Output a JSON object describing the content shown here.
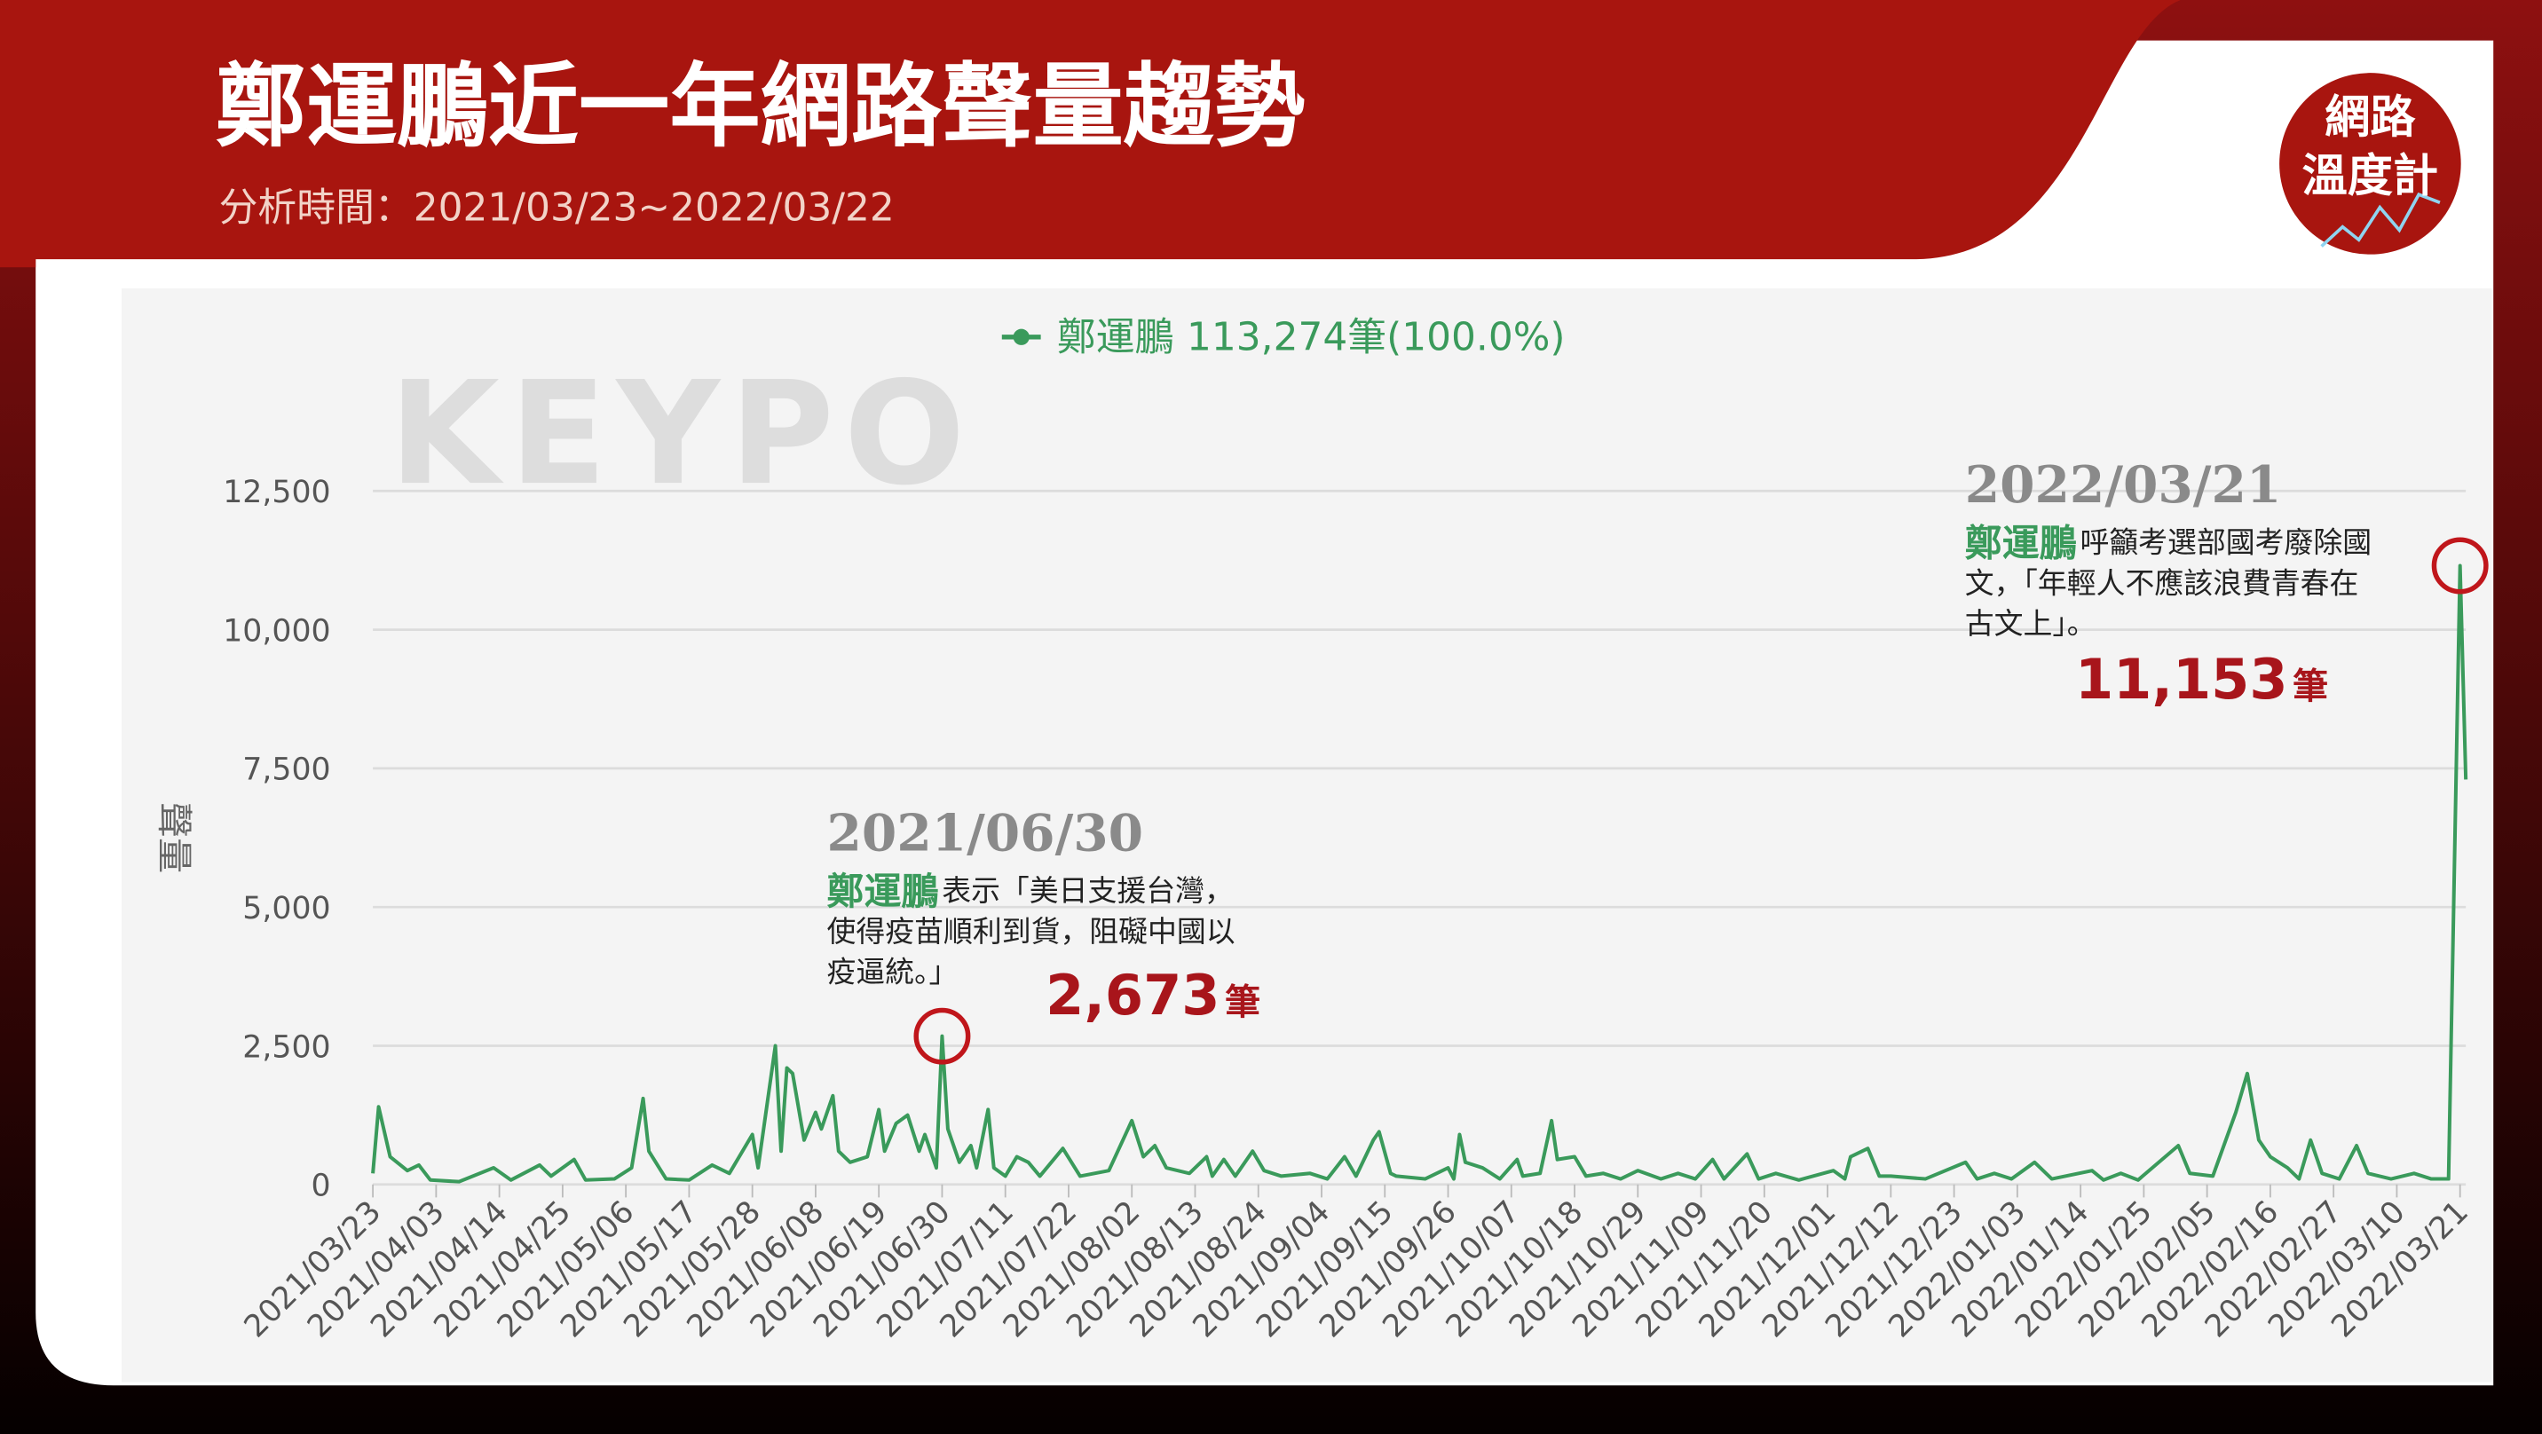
{
  "header": {
    "title": "鄭運鵬近一年網路聲量趨勢",
    "subtitle": "分析時間：2021/03/23~2022/03/22",
    "logo_lines": [
      "網路",
      "溫度計"
    ],
    "watermark": "KEYPO"
  },
  "chart_data": {
    "type": "line",
    "ylabel": "聲量",
    "x": [
      "2021/03/23",
      "2021/03/24",
      "2021/03/26",
      "2021/03/29",
      "2021/03/31",
      "2021/04/02",
      "2021/04/07",
      "2021/04/13",
      "2021/04/16",
      "2021/04/21",
      "2021/04/23",
      "2021/04/27",
      "2021/04/29",
      "2021/05/04",
      "2021/05/07",
      "2021/05/09",
      "2021/05/10",
      "2021/05/13",
      "2021/05/17",
      "2021/05/21",
      "2021/05/24",
      "2021/05/28",
      "2021/05/29",
      "2021/06/01",
      "2021/06/02",
      "2021/06/03",
      "2021/06/04",
      "2021/06/06",
      "2021/06/08",
      "2021/06/09",
      "2021/06/11",
      "2021/06/12",
      "2021/06/14",
      "2021/06/17",
      "2021/06/19",
      "2021/06/20",
      "2021/06/22",
      "2021/06/24",
      "2021/06/26",
      "2021/06/27",
      "2021/06/29",
      "2021/06/30",
      "2021/07/01",
      "2021/07/03",
      "2021/07/05",
      "2021/07/06",
      "2021/07/08",
      "2021/07/09",
      "2021/07/11",
      "2021/07/13",
      "2021/07/15",
      "2021/07/17",
      "2021/07/21",
      "2021/07/24",
      "2021/07/29",
      "2021/08/02",
      "2021/08/04",
      "2021/08/06",
      "2021/08/08",
      "2021/08/12",
      "2021/08/15",
      "2021/08/16",
      "2021/08/18",
      "2021/08/20",
      "2021/08/23",
      "2021/08/25",
      "2021/08/28",
      "2021/09/02",
      "2021/09/05",
      "2021/09/08",
      "2021/09/10",
      "2021/09/13",
      "2021/09/14",
      "2021/09/16",
      "2021/09/17",
      "2021/09/22",
      "2021/09/26",
      "2021/09/27",
      "2021/09/28",
      "2021/09/29",
      "2021/10/02",
      "2021/10/05",
      "2021/10/08",
      "2021/10/09",
      "2021/10/12",
      "2021/10/14",
      "2021/10/15",
      "2021/10/18",
      "2021/10/20",
      "2021/10/23",
      "2021/10/26",
      "2021/10/29",
      "2021/11/02",
      "2021/11/05",
      "2021/11/08",
      "2021/11/11",
      "2021/11/13",
      "2021/11/17",
      "2021/11/19",
      "2021/11/22",
      "2021/11/26",
      "2021/12/02",
      "2021/12/04",
      "2021/12/05",
      "2021/12/08",
      "2021/12/10",
      "2021/12/12",
      "2021/12/18",
      "2021/12/25",
      "2021/12/27",
      "2021/12/30",
      "2022/01/02",
      "2022/01/06",
      "2022/01/09",
      "2022/01/16",
      "2022/01/18",
      "2022/01/21",
      "2022/01/24",
      "2022/01/31",
      "2022/02/02",
      "2022/02/06",
      "2022/02/10",
      "2022/02/12",
      "2022/02/14",
      "2022/02/16",
      "2022/02/19",
      "2022/02/21",
      "2022/02/23",
      "2022/02/25",
      "2022/02/28",
      "2022/03/03",
      "2022/03/05",
      "2022/03/09",
      "2022/03/13",
      "2022/03/16",
      "2022/03/19",
      "2022/03/21",
      "2022/03/22"
    ],
    "series": [
      {
        "name": "鄭運鵬",
        "color": "#3a9a5b",
        "legend_stats": "113,274筆(100.0%)",
        "values": [
          200,
          1400,
          500,
          250,
          350,
          80,
          50,
          300,
          80,
          350,
          150,
          450,
          80,
          100,
          300,
          1550,
          600,
          100,
          80,
          350,
          200,
          900,
          300,
          2500,
          600,
          2100,
          2000,
          800,
          1300,
          1000,
          1600,
          600,
          400,
          500,
          1350,
          600,
          1100,
          1250,
          600,
          900,
          300,
          2673,
          1000,
          400,
          700,
          300,
          1350,
          300,
          150,
          500,
          400,
          150,
          650,
          150,
          250,
          1150,
          500,
          700,
          300,
          200,
          500,
          150,
          450,
          150,
          600,
          250,
          150,
          200,
          100,
          500,
          150,
          800,
          950,
          200,
          150,
          100,
          300,
          100,
          900,
          400,
          300,
          100,
          450,
          150,
          200,
          1150,
          450,
          500,
          150,
          200,
          100,
          250,
          100,
          200,
          100,
          450,
          100,
          550,
          100,
          200,
          80,
          250,
          100,
          500,
          650,
          150,
          150,
          100,
          400,
          100,
          200,
          100,
          400,
          100,
          250,
          80,
          200,
          80,
          700,
          200,
          150,
          1300,
          2000,
          800,
          500,
          300,
          100,
          800,
          200,
          100,
          700,
          200,
          100,
          200,
          100,
          100,
          11153,
          7300
        ]
      }
    ],
    "xlim": [
      "2021/03/23",
      "2022/03/22"
    ],
    "xticks": [
      "2021/03/23",
      "2021/04/03",
      "2021/04/14",
      "2021/04/25",
      "2021/05/06",
      "2021/05/17",
      "2021/05/28",
      "2021/06/08",
      "2021/06/19",
      "2021/06/30",
      "2021/07/11",
      "2021/07/22",
      "2021/08/02",
      "2021/08/13",
      "2021/08/24",
      "2021/09/04",
      "2021/09/15",
      "2021/09/26",
      "2021/10/07",
      "2021/10/18",
      "2021/10/29",
      "2021/11/09",
      "2021/11/20",
      "2021/12/01",
      "2021/12/12",
      "2021/12/23",
      "2022/01/03",
      "2022/01/14",
      "2022/01/25",
      "2022/02/05",
      "2022/02/16",
      "2022/02/27",
      "2022/03/10",
      "2022/03/21"
    ],
    "ylim": [
      0,
      12500
    ],
    "yticks": [
      0,
      {
        "value": 2500,
        "label": "2,500"
      },
      {
        "value": 5000,
        "label": "5,000"
      },
      {
        "value": 7500,
        "label": "7,500"
      },
      {
        "value": 10000,
        "label": "10,000"
      },
      {
        "value": 12500,
        "label": "12,500"
      }
    ],
    "grid": true,
    "annotations": [
      {
        "date": "2021/06/30",
        "name": "鄭運鵬",
        "text_lines": [
          "表示「美日支援台灣，",
          "使得疫苗順利到貨，阻礙中國以",
          "疫逼統。」"
        ],
        "value": 2673,
        "value_label": "2,673",
        "unit": "筆"
      },
      {
        "date": "2022/03/21",
        "name": "鄭運鵬",
        "text_lines": [
          "呼籲考選部國考廢除國",
          "文，「年輕人不應該浪費青春在",
          "古文上」。"
        ],
        "value": 11153,
        "value_label": "11,153",
        "unit": "筆"
      }
    ]
  }
}
